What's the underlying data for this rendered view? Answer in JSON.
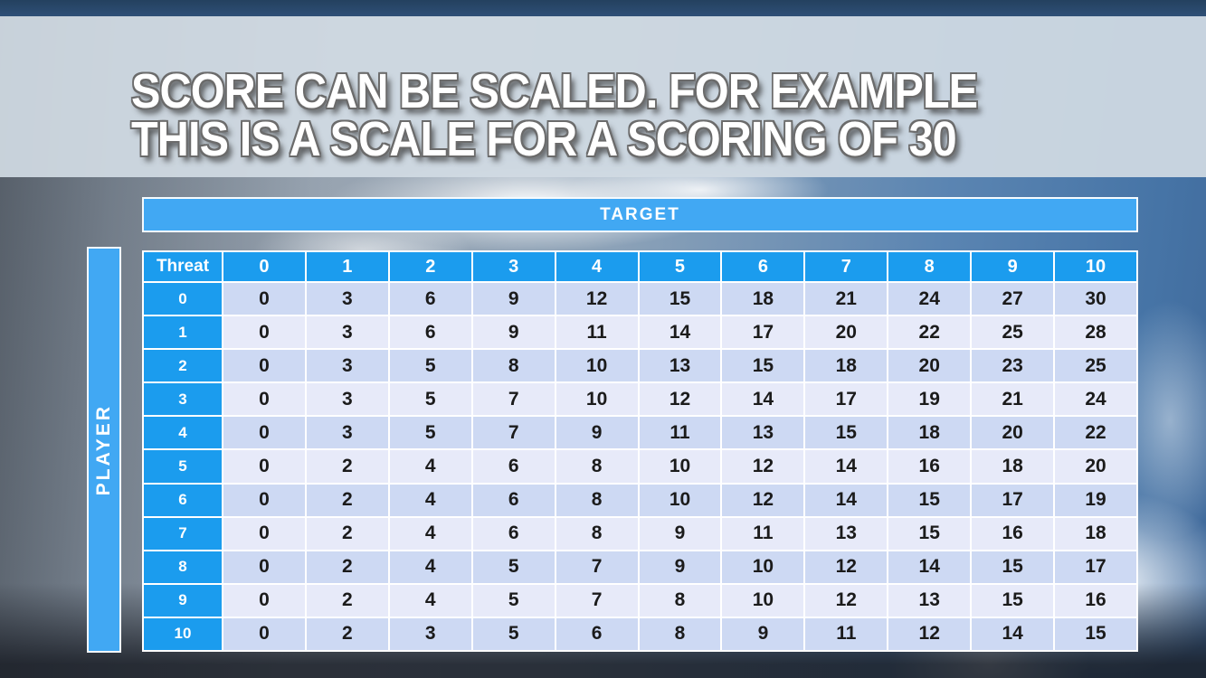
{
  "slide": {
    "title_line1": "SCORE CAN BE SCALED. FOR EXAMPLE",
    "title_line2": "THIS IS A SCALE FOR A SCORING OF 30"
  },
  "matrix": {
    "target_axis_label": "TARGET",
    "player_axis_label": "PLAYER",
    "corner_label": "Threat",
    "target_values": [
      "0",
      "1",
      "2",
      "3",
      "4",
      "5",
      "6",
      "7",
      "8",
      "9",
      "10"
    ],
    "rows": [
      {
        "threat": "0",
        "scores": [
          0,
          3,
          6,
          9,
          12,
          15,
          18,
          21,
          24,
          27,
          30
        ]
      },
      {
        "threat": "1",
        "scores": [
          0,
          3,
          6,
          9,
          11,
          14,
          17,
          20,
          22,
          25,
          28
        ]
      },
      {
        "threat": "2",
        "scores": [
          0,
          3,
          5,
          8,
          10,
          13,
          15,
          18,
          20,
          23,
          25
        ]
      },
      {
        "threat": "3",
        "scores": [
          0,
          3,
          5,
          7,
          10,
          12,
          14,
          17,
          19,
          21,
          24
        ]
      },
      {
        "threat": "4",
        "scores": [
          0,
          3,
          5,
          7,
          9,
          11,
          13,
          15,
          18,
          20,
          22
        ]
      },
      {
        "threat": "5",
        "scores": [
          0,
          2,
          4,
          6,
          8,
          10,
          12,
          14,
          16,
          18,
          20
        ]
      },
      {
        "threat": "6",
        "scores": [
          0,
          2,
          4,
          6,
          8,
          10,
          12,
          14,
          15,
          17,
          19
        ]
      },
      {
        "threat": "7",
        "scores": [
          0,
          2,
          4,
          6,
          8,
          9,
          11,
          13,
          15,
          16,
          18
        ]
      },
      {
        "threat": "8",
        "scores": [
          0,
          2,
          4,
          5,
          7,
          9,
          10,
          12,
          14,
          15,
          17
        ]
      },
      {
        "threat": "9",
        "scores": [
          0,
          2,
          4,
          5,
          7,
          8,
          10,
          12,
          13,
          15,
          16
        ]
      },
      {
        "threat": "10",
        "scores": [
          0,
          2,
          3,
          5,
          6,
          8,
          9,
          11,
          12,
          14,
          15
        ]
      }
    ]
  },
  "colors": {
    "bar_blue": "#41a8f3",
    "header_blue": "#1b9cee",
    "row_even": "#cdd9f3",
    "row_odd": "#e7eaf9",
    "title_band": "#d1dae3"
  }
}
